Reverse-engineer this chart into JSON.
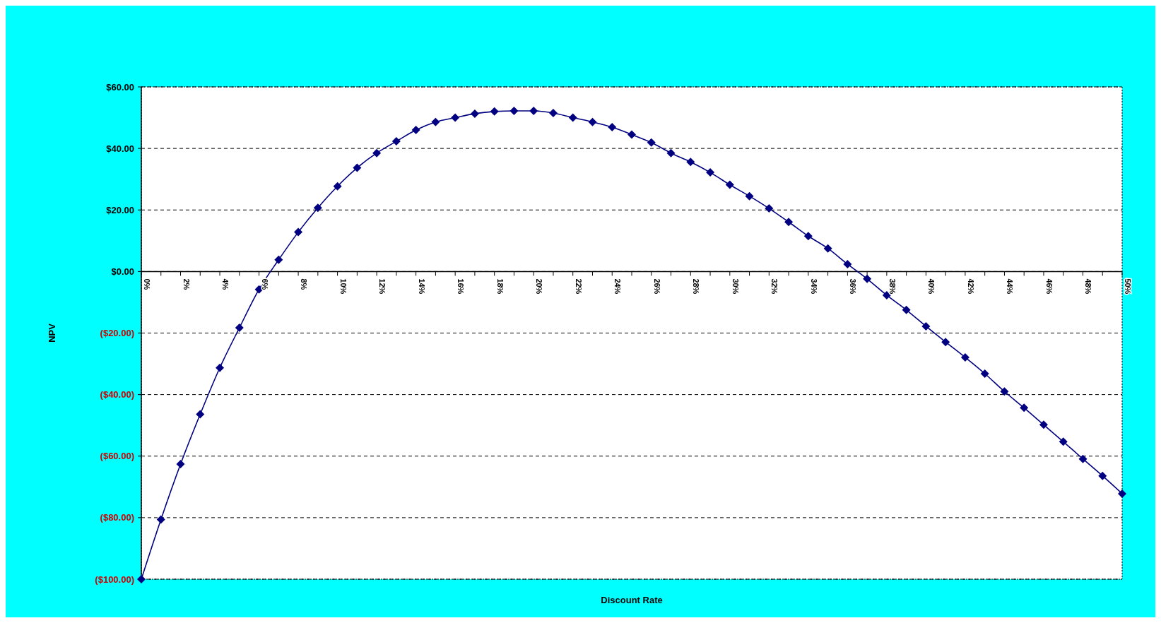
{
  "chart_data": {
    "type": "line",
    "xlabel": "Discount Rate",
    "ylabel": "NPV",
    "categories": [
      "0%",
      null,
      "2%",
      null,
      "4%",
      null,
      "6%",
      null,
      "8%",
      null,
      "10%",
      null,
      "12%",
      null,
      "14%",
      null,
      "16%",
      null,
      "18%",
      null,
      "20%",
      null,
      "22%",
      null,
      "24%",
      null,
      "26%",
      null,
      "28%",
      null,
      "30%",
      null,
      "32%",
      null,
      "34%",
      null,
      "36%",
      null,
      "38%",
      null,
      "40%",
      null,
      "42%",
      null,
      "44%",
      null,
      "46%",
      null,
      "48%",
      null,
      "50%"
    ],
    "series": [
      {
        "color": "#000080",
        "values": [
          -100,
          -80.6,
          -62.6,
          -46.4,
          -31.3,
          -18.3,
          -5.8,
          3.8,
          12.8,
          20.7,
          27.7,
          33.7,
          38.5,
          42.3,
          46,
          48.6,
          50,
          51.3,
          52,
          52.2,
          52.2,
          51.5,
          50,
          48.6,
          46.9,
          44.5,
          41.9,
          38.5,
          35.6,
          32.2,
          28.2,
          24.5,
          20.5,
          16.1,
          11.5,
          7.5,
          2.4,
          -2.4,
          -7.7,
          -12.5,
          -17.8,
          -22.9,
          -27.9,
          -33.2,
          -39,
          -44.3,
          -49.8,
          -55.3,
          -60.9,
          -66.4,
          -72.2
        ]
      }
    ],
    "ylim": [
      -100,
      60
    ],
    "yticks": [
      {
        "value": 60,
        "label": "$60.00"
      },
      {
        "value": 40,
        "label": "$40.00"
      },
      {
        "value": 20,
        "label": "$20.00"
      },
      {
        "value": 0,
        "label": "$0.00"
      },
      {
        "value": -20,
        "label": "($20.00)"
      },
      {
        "value": -40,
        "label": "($40.00)"
      },
      {
        "value": -60,
        "label": "($60.00)"
      },
      {
        "value": -80,
        "label": "($80.00)"
      },
      {
        "value": -100,
        "label": "($100.00)"
      }
    ],
    "grid": "y",
    "marker": "diamond",
    "line_style": "solid"
  }
}
